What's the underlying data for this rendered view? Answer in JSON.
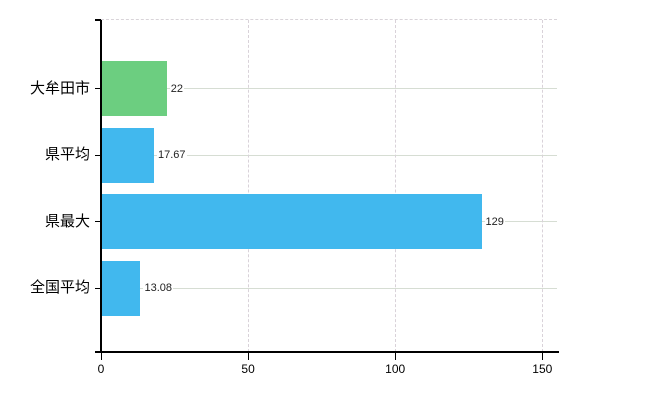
{
  "chart_data": {
    "type": "bar",
    "orientation": "horizontal",
    "title": "",
    "xlabel": "",
    "ylabel": "",
    "categories": [
      "大牟田市",
      "県平均",
      "県最大",
      "全国平均"
    ],
    "values": [
      22,
      17.67,
      129,
      13.08
    ],
    "value_labels": [
      "22",
      "17.67",
      "129",
      "13.08"
    ],
    "bar_colors": [
      "#6cce80",
      "#41b8ee",
      "#41b8ee",
      "#41b8ee"
    ],
    "x_ticks": [
      0,
      50,
      100,
      150
    ],
    "x_tick_labels": [
      "0",
      "50",
      "100",
      "150"
    ],
    "xlim": [
      0,
      155
    ],
    "legend": "none",
    "grid": {
      "vertical_style": "dashed",
      "vertical_color": "#d9d2d9",
      "horizontal_style": "solid",
      "horizontal_color": "#d6ddd3",
      "top_border_style": "dashed",
      "top_border_color": "#d9d4d9"
    },
    "axis_color": "#000000",
    "background_color": "#ffffff",
    "text_color": "#000000"
  }
}
